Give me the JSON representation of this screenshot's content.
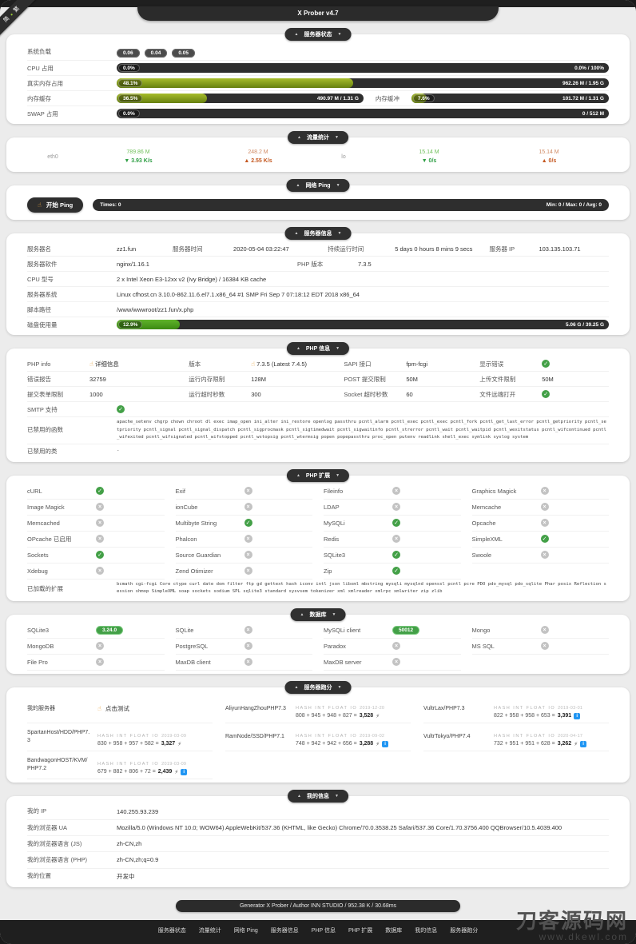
{
  "ui": {
    "collapse_up": "▲",
    "collapse_down": "▼",
    "finger": "☝",
    "dot": "•",
    "bolt": "⚡",
    "info_glyph": "i",
    "arrow_down": "▼",
    "arrow_up": "▲"
  },
  "app": {
    "title": "X Prober v4.7",
    "lang_left": "简",
    "lang_right": "繁"
  },
  "status": {
    "title": "服务器状态",
    "load_label": "系统负载",
    "load_values": [
      "0.06",
      "0.04",
      "0.05"
    ],
    "cpu_label": "CPU 占用",
    "cpu_percent": "0.0%",
    "cpu_right": "0.0% / 100%",
    "mem_label": "真实内存占用",
    "mem_percent": "48.1%",
    "mem_right": "962.26 M / 1.95 G",
    "cache_label": "内存缓存",
    "cache_percent": "36.5%",
    "cache_right": "490.97 M / 1.31 G",
    "buffer_label": "内存缓冲",
    "buffer_percent": "7.6%",
    "buffer_right": "101.72 M / 1.31 G",
    "swap_label": "SWAP 占用",
    "swap_percent": "0.0%",
    "swap_right": "0 / 512 M"
  },
  "traffic": {
    "title": "流量统计",
    "networks": [
      {
        "name": "eth0",
        "rx_total": "789.86 M",
        "rx_speed": "▼ 3.93 K/s",
        "tx_total": "248.2 M",
        "tx_speed": "▲ 2.55 K/s"
      },
      {
        "name": "lo",
        "rx_total": "15.14 M",
        "rx_speed": "▼ 0/s",
        "tx_total": "15.14 M",
        "tx_speed": "▲ 0/s"
      }
    ]
  },
  "ping": {
    "title": "网络 Ping",
    "button": "开始 Ping",
    "times": "Times: 0",
    "stats": "Min: 0 / Max: 0 / Avg: 0"
  },
  "server": {
    "title": "服务器信息",
    "name_label": "服务器名",
    "name": "zz1.fun",
    "time_label": "服务器时间",
    "time": "2020-05-04 03:22:47",
    "uptime_label": "持续运行时间",
    "uptime": "5 days 0 hours 8 mins 9 secs",
    "ip_label": "服务器 IP",
    "ip": "103.135.103.71",
    "software_label": "服务器软件",
    "software": "nginx/1.16.1",
    "php_label": "PHP 版本",
    "php": "7.3.5",
    "cpu_label": "CPU 型号",
    "cpu": "2 x Intel Xeon E3-12xx v2 (Ivy Bridge) / 16384 KB cache",
    "os_label": "服务器系统",
    "os": "Linux cfhost.cn 3.10.0-862.11.6.el7.1.x86_64 #1 SMP Fri Sep 7 07:18:12 EDT 2018 x86_64",
    "path_label": "脚本路径",
    "path": "/www/wwwroot/zz1.fun/x.php",
    "disk_label": "磁盘使用量",
    "disk_percent": "12.9%",
    "disk_right": "5.06 G / 39.25 G"
  },
  "php_info": {
    "title": "PHP 信息",
    "cells": [
      {
        "label": "PHP info",
        "value": "详细信息",
        "kind": "link"
      },
      {
        "label": "版本",
        "value": "7.3.5 (Latest 7.4.5)",
        "kind": "link"
      },
      {
        "label": "SAPI 接口",
        "value": "fpm-fcgi",
        "kind": "text"
      },
      {
        "label": "显示错误",
        "value": "",
        "kind": "check"
      },
      {
        "label": "错误报告",
        "value": "32759",
        "kind": "text"
      },
      {
        "label": "运行内存限制",
        "value": "128M",
        "kind": "text"
      },
      {
        "label": "POST 提交限制",
        "value": "50M",
        "kind": "text"
      },
      {
        "label": "上传文件限制",
        "value": "50M",
        "kind": "text"
      },
      {
        "label": "提交表单限制",
        "value": "1000",
        "kind": "text"
      },
      {
        "label": "运行超时秒数",
        "value": "300",
        "kind": "text"
      },
      {
        "label": "Socket 超时秒数",
        "value": "60",
        "kind": "text"
      },
      {
        "label": "文件远端打开",
        "value": "",
        "kind": "check"
      }
    ],
    "smtp_label": "SMTP 支持",
    "disabled_fn_label": "已禁用的函数",
    "disabled_fn": "apache_setenv chgrp chown chroot dl exec imap_open ini_alter ini_restore openlog passthru pcntl_alarm pcntl_exec pcntl_exec pcntl_fork pcntl_get_last_error pcntl_getpriority pcntl_setpriority pcntl_signal pcntl_signal_dispatch pcntl_sigprocmask pcntl_sigtimedwait pcntl_sigwaitinfo pcntl_strerror pcntl_wait pcntl_waitpid pcntl_wexitstatus pcntl_wifcontinued pcntl_wifexited pcntl_wifsignaled pcntl_wifstopped pcntl_wstopsig pcntl_wtermsig popen popepassthru proc_open putenv readlink shell_exec symlink syslog system",
    "disabled_cls_label": "已禁用的类",
    "disabled_cls": "-"
  },
  "extensions": {
    "title": "PHP 扩展",
    "items": [
      {
        "name": "cURL",
        "state": "on"
      },
      {
        "name": "Exif",
        "state": "off"
      },
      {
        "name": "Fileinfo",
        "state": "off"
      },
      {
        "name": "Graphics Magick",
        "state": "off"
      },
      {
        "name": "Image Magick",
        "state": "off"
      },
      {
        "name": "ionCube",
        "state": "off"
      },
      {
        "name": "LDAP",
        "state": "off"
      },
      {
        "name": "Memcache",
        "state": "off"
      },
      {
        "name": "Memcached",
        "state": "off"
      },
      {
        "name": "Multibyte String",
        "state": "on"
      },
      {
        "name": "MySQLi",
        "state": "on"
      },
      {
        "name": "Opcache",
        "state": "off"
      },
      {
        "name": "OPcache 已启用",
        "state": "off"
      },
      {
        "name": "Phalcon",
        "state": "off"
      },
      {
        "name": "Redis",
        "state": "off"
      },
      {
        "name": "SimpleXML",
        "state": "on"
      },
      {
        "name": "Sockets",
        "state": "on"
      },
      {
        "name": "Source Guardian",
        "state": "off"
      },
      {
        "name": "SQLite3",
        "state": "on"
      },
      {
        "name": "Swoole",
        "state": "off"
      },
      {
        "name": "Xdebug",
        "state": "off"
      },
      {
        "name": "Zend Otimizer",
        "state": "off"
      },
      {
        "name": "Zip",
        "state": "on"
      }
    ],
    "loaded_label": "已加载的扩展",
    "loaded": "bcmath cgi-fcgi Core ctype curl date dom filter ftp gd gettext hash iconv intl json libxml mbstring mysqli mysqlnd openssl pcntl pcre PDO pdo_mysql pdo_sqlite Phar posix Reflection session shmop SimpleXML soap sockets sodium SPL sqlite3 standard sysvsem tokenizer xml xmlreader xmlrpc xmlwriter zip zlib"
  },
  "databases": {
    "title": "数据库",
    "items": [
      {
        "name": "SQLite3",
        "badge": "3.24.0",
        "state": "on"
      },
      {
        "name": "SQLite",
        "state": "off"
      },
      {
        "name": "MySQLi client",
        "badge": "50012",
        "state": "on"
      },
      {
        "name": "Mongo",
        "state": "off"
      },
      {
        "name": "MongoDB",
        "state": "off"
      },
      {
        "name": "PostgreSQL",
        "state": "off"
      },
      {
        "name": "Paradox",
        "state": "off"
      },
      {
        "name": "MS SQL",
        "state": "off"
      },
      {
        "name": "File Pro",
        "state": "off"
      },
      {
        "name": "MaxDB client",
        "state": "off"
      },
      {
        "name": "MaxDB server",
        "state": "off"
      }
    ]
  },
  "benchmark": {
    "title": "服务器跑分",
    "my_label": "我的服务器",
    "my_link": "点击测试",
    "hash_header": "HASH INT FLOAT IO",
    "entries": [
      {
        "name": "AliyunHangZhouPHP7.3",
        "date": "2019-12-20",
        "formula": "808 + 945 + 948 + 827 =",
        "total": "3,528",
        "link_icon": "⚡",
        "info_icon": ""
      },
      {
        "name": "VultrLax/PHP7.3",
        "date": "2019-03-01",
        "formula": "822 + 958 + 958 + 653 =",
        "total": "3,391",
        "link_icon": "",
        "info_icon": "i"
      },
      {
        "name": "SpartanHost/HDD/PHP7.3",
        "date": "2019-03-09",
        "formula": "830 + 958 + 957 + 582 =",
        "total": "3,327",
        "link_icon": "⚡",
        "info_icon": ""
      },
      {
        "name": "RamNode/SSD/PHP7.1",
        "date": "2019-09-02",
        "formula": "748 + 942 + 942 + 656 =",
        "total": "3,288",
        "link_icon": "⚡",
        "info_icon": "i"
      },
      {
        "name": "VultrTokyo/PHP7.4",
        "date": "2020-04-17",
        "formula": "732 + 951 + 951 + 628 =",
        "total": "3,262",
        "link_icon": "⚡",
        "info_icon": "i"
      },
      {
        "name": "BandwagonHOST/KVM/PHP7.2",
        "date": "2019-03-09",
        "formula": "679 + 882 + 806 + 72 =",
        "total": "2,439",
        "link_icon": "⚡",
        "info_icon": "i"
      }
    ]
  },
  "my_info": {
    "title": "我的信息",
    "rows": [
      {
        "label": "我的 IP",
        "value": "140.255.93.239"
      },
      {
        "label": "我的浏览器 UA",
        "value": "Mozilla/5.0 (Windows NT 10.0; WOW64) AppleWebKit/537.36 (KHTML, like Gecko) Chrome/70.0.3538.25 Safari/537.36 Core/1.70.3756.400 QQBrowser/10.5.4039.400"
      },
      {
        "label": "我的浏览器语言 (JS)",
        "value": "zh-CN,zh"
      },
      {
        "label": "我的浏览器语言 (PHP)",
        "value": "zh-CN,zh;q=0.9"
      },
      {
        "label": "我的位置",
        "value": "开发中"
      }
    ]
  },
  "footer": {
    "generator": "Generator X Prober / Author INN STUDIO / 952.38 K / 30.68ms",
    "nav": [
      "服务器状态",
      "流量统计",
      "网络 Ping",
      "服务器信息",
      "PHP 信息",
      "PHP 扩展",
      "数据库",
      "我的信息",
      "服务器跑分"
    ]
  },
  "watermark": {
    "line1": "刀客源码网",
    "line2": "www.dkewl.com"
  }
}
